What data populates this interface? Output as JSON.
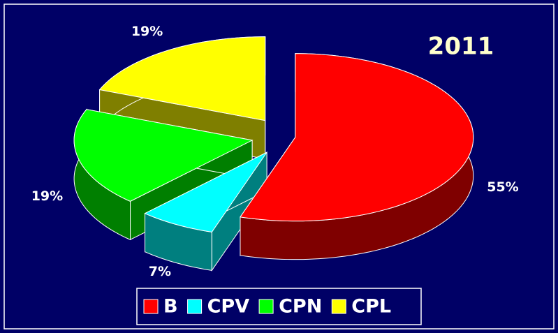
{
  "chart_data": {
    "type": "pie3d",
    "title": "2011",
    "categories": [
      "B",
      "CPV",
      "CPN",
      "CPL"
    ],
    "values": [
      55,
      7,
      19,
      19
    ],
    "value_labels": [
      "55%",
      "7%",
      "19%",
      "19%"
    ],
    "colors": [
      "#ff0000",
      "#00ffff",
      "#00ff00",
      "#ffff00"
    ],
    "legend": "bottom"
  }
}
